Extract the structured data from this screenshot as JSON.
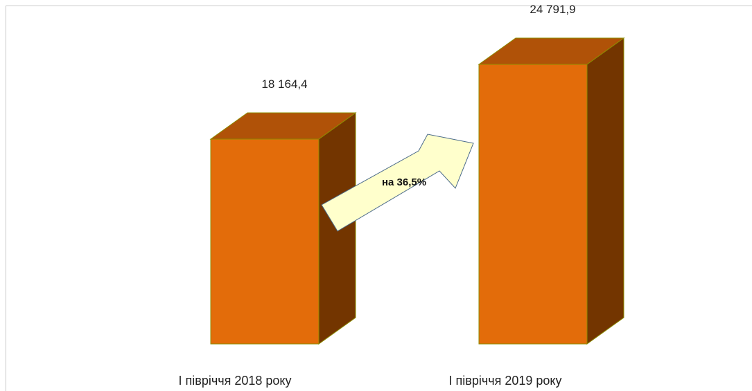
{
  "chart_data": {
    "type": "bar",
    "style": "3d-column",
    "categories": [
      "І півріччя 2018 року",
      "І півріччя 2019 року"
    ],
    "values": [
      18164.4,
      24791.9
    ],
    "value_labels": [
      "18 164,4",
      "24 791,9"
    ],
    "title": "",
    "xlabel": "",
    "ylabel": "",
    "ylim": [
      0,
      26000
    ],
    "grid": false,
    "legend": "none",
    "annotation": {
      "text": "на 36,5%",
      "type": "arrow",
      "from_category": 0,
      "to_category": 1
    },
    "colors": {
      "bar_front": "#E36C0A",
      "bar_top": "#B05208",
      "bar_side": "#733500",
      "bar_edge": "#8C8C00",
      "arrow_fill": "#FFFFCC",
      "arrow_stroke": "#4A6A8A",
      "frame": "#C8C8C8"
    }
  }
}
